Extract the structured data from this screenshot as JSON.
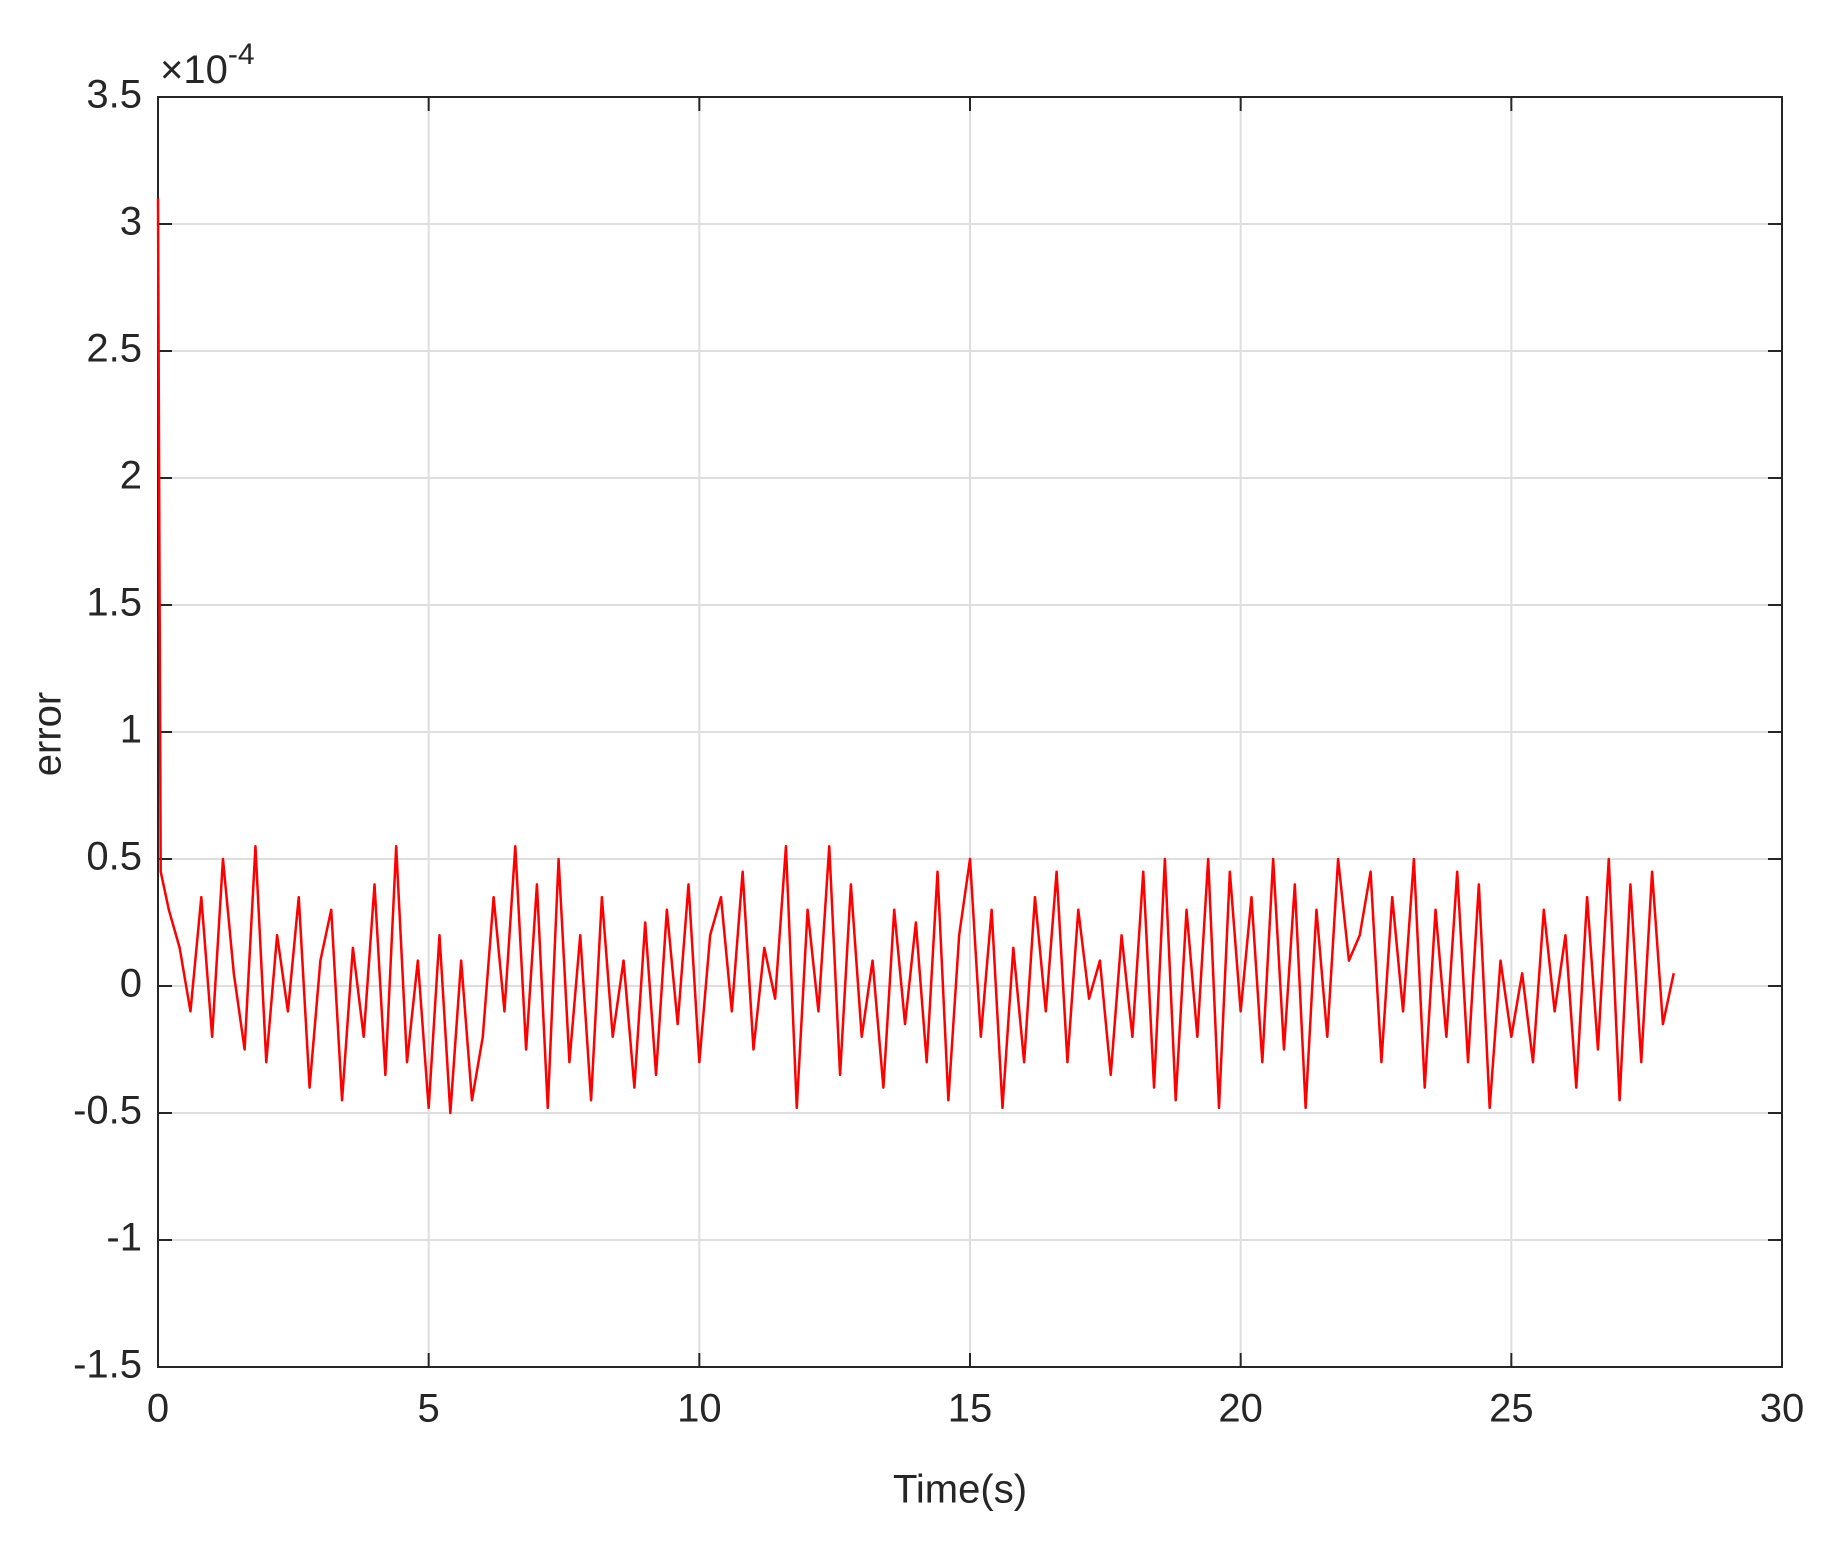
{
  "chart_data": {
    "type": "line",
    "xlabel": "Time(s)",
    "ylabel": "error",
    "y_exponent": {
      "base": "×10",
      "power": "-4"
    },
    "xlim": [
      0,
      30
    ],
    "xticks": [
      0,
      5,
      10,
      15,
      20,
      25,
      30
    ],
    "ylim": [
      -1.5,
      3.5
    ],
    "yticks": [
      -1.5,
      -1,
      -0.5,
      0,
      0.5,
      1,
      1.5,
      2,
      2.5,
      3,
      3.5
    ],
    "grid": true,
    "x": [
      0,
      0.05,
      0.2,
      0.4,
      0.6,
      0.8,
      1,
      1.2,
      1.4,
      1.6,
      1.8,
      2,
      2.2,
      2.4,
      2.6,
      2.8,
      3,
      3.2,
      3.4,
      3.6,
      3.8,
      4,
      4.2,
      4.4,
      4.6,
      4.8,
      5,
      5.2,
      5.4,
      5.6,
      5.8,
      6,
      6.2,
      6.4,
      6.6,
      6.8,
      7,
      7.2,
      7.4,
      7.6,
      7.8,
      8,
      8.2,
      8.4,
      8.6,
      8.8,
      9,
      9.2,
      9.4,
      9.6,
      9.8,
      10,
      10.2,
      10.4,
      10.6,
      10.8,
      11,
      11.2,
      11.4,
      11.6,
      11.8,
      12,
      12.2,
      12.4,
      12.6,
      12.8,
      13,
      13.2,
      13.4,
      13.6,
      13.8,
      14,
      14.2,
      14.4,
      14.6,
      14.8,
      15,
      15.2,
      15.4,
      15.6,
      15.8,
      16,
      16.2,
      16.4,
      16.6,
      16.8,
      17,
      17.2,
      17.4,
      17.6,
      17.8,
      18,
      18.2,
      18.4,
      18.6,
      18.8,
      19,
      19.2,
      19.4,
      19.6,
      19.8,
      20,
      20.2,
      20.4,
      20.6,
      20.8,
      21,
      21.2,
      21.4,
      21.6,
      21.8,
      22,
      22.2,
      22.4,
      22.6,
      22.8,
      23,
      23.2,
      23.4,
      23.6,
      23.8,
      24,
      24.2,
      24.4,
      24.6,
      24.8,
      25,
      25.2,
      25.4,
      25.6,
      25.8,
      26,
      26.2,
      26.4,
      26.6,
      26.8,
      27,
      27.2,
      27.4,
      27.6,
      27.8,
      28
    ],
    "series": [
      {
        "color": "#ff0000",
        "values": [
          3.1,
          0.45,
          0.3,
          0.15,
          -0.1,
          0.35,
          -0.2,
          0.5,
          0.05,
          -0.25,
          0.55,
          -0.3,
          0.2,
          -0.1,
          0.35,
          -0.4,
          0.1,
          0.3,
          -0.45,
          0.15,
          -0.2,
          0.4,
          -0.35,
          0.55,
          -0.3,
          0.1,
          -0.48,
          0.2,
          -0.5,
          0.1,
          -0.45,
          -0.2,
          0.35,
          -0.1,
          0.55,
          -0.25,
          0.4,
          -0.48,
          0.5,
          -0.3,
          0.2,
          -0.45,
          0.35,
          -0.2,
          0.1,
          -0.4,
          0.25,
          -0.35,
          0.3,
          -0.15,
          0.4,
          -0.3,
          0.2,
          0.35,
          -0.1,
          0.45,
          -0.25,
          0.15,
          -0.05,
          0.55,
          -0.48,
          0.3,
          -0.1,
          0.55,
          -0.35,
          0.4,
          -0.2,
          0.1,
          -0.4,
          0.3,
          -0.15,
          0.25,
          -0.3,
          0.45,
          -0.45,
          0.2,
          0.5,
          -0.2,
          0.3,
          -0.48,
          0.15,
          -0.3,
          0.35,
          -0.1,
          0.45,
          -0.3,
          0.3,
          -0.05,
          0.1,
          -0.35,
          0.2,
          -0.2,
          0.45,
          -0.4,
          0.5,
          -0.45,
          0.3,
          -0.2,
          0.5,
          -0.48,
          0.45,
          -0.1,
          0.35,
          -0.3,
          0.5,
          -0.25,
          0.4,
          -0.48,
          0.3,
          -0.2,
          0.5,
          0.1,
          0.2,
          0.45,
          -0.3,
          0.35,
          -0.1,
          0.5,
          -0.4,
          0.3,
          -0.2,
          0.45,
          -0.3,
          0.4,
          -0.48,
          0.1,
          -0.2,
          0.05,
          -0.3,
          0.3,
          -0.1,
          0.2,
          -0.4,
          0.35,
          -0.25,
          0.5,
          -0.45,
          0.4,
          -0.3,
          0.45,
          -0.15,
          0.05
        ]
      }
    ]
  }
}
